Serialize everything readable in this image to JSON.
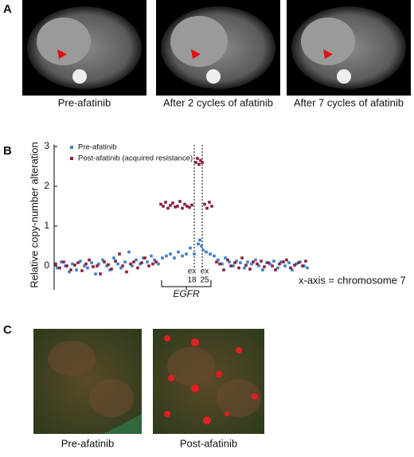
{
  "panels": {
    "a": "A",
    "b": "B",
    "c": "C"
  },
  "panel_a_captions": [
    "Pre-afatinib",
    "After 2 cycles of afatinib",
    "After 7 cycles of afatinib"
  ],
  "panel_c_captions": [
    "Pre-afatinib",
    "Post-afatinib"
  ],
  "chart_data": {
    "type": "scatter",
    "y_label": "Relative copy-number alteration",
    "x_note": "x-axis = chromosome 7",
    "gene_label": "EGFR",
    "exon_labels": [
      {
        "top": "ex",
        "bottom": "18"
      },
      {
        "top": "ex",
        "bottom": "25"
      }
    ],
    "ylim": [
      -0.6,
      3.05
    ],
    "yticks": [
      0,
      1,
      2,
      3
    ],
    "xlim": [
      0,
      320
    ],
    "series": [
      {
        "name": "Pre-afatinib",
        "color": "#3f7fc8",
        "x": [
          2,
          7,
          12,
          17,
          21,
          26,
          31,
          36,
          40,
          45,
          50,
          54,
          59,
          64,
          68,
          73,
          78,
          82,
          87,
          92,
          96,
          101,
          106,
          110,
          115,
          120,
          124,
          129,
          134,
          139,
          144,
          149,
          154,
          159,
          164,
          169,
          174,
          179,
          181,
          183,
          185,
          189,
          194,
          199,
          204,
          209,
          213,
          218,
          223,
          227,
          232,
          237,
          241,
          246,
          251,
          255,
          260,
          265,
          269,
          274,
          279,
          283,
          288,
          293,
          297,
          302,
          307,
          312,
          316
        ],
        "values": [
          -0.05,
          0.1,
          0,
          -0.15,
          0.05,
          -0.1,
          0.12,
          0,
          -0.05,
          0.08,
          -0.2,
          0.05,
          0.15,
          0,
          -0.1,
          0.2,
          0.05,
          -0.05,
          0.1,
          0.35,
          0,
          0.15,
          0.05,
          0.2,
          0.1,
          0.25,
          0.15,
          0.05,
          0.2,
          0.25,
          0.3,
          0.2,
          0.35,
          0.25,
          0.3,
          0.45,
          0.3,
          0.55,
          0.65,
          0.5,
          0.4,
          0.35,
          0.3,
          0.25,
          0.15,
          0.05,
          0.2,
          0.1,
          0,
          0.12,
          0.08,
          -0.05,
          0.1,
          0.05,
          0.15,
          0,
          -0.1,
          0.08,
          0.05,
          0.12,
          -0.05,
          0.1,
          0,
          0.08,
          -0.1,
          0.05,
          0.1,
          0,
          -0.05
        ]
      },
      {
        "name": "Post-afatinib (acquired resistance)",
        "color": "#8a1f3c",
        "x": [
          0,
          5,
          10,
          14,
          19,
          24,
          28,
          33,
          38,
          42,
          47,
          52,
          56,
          61,
          66,
          70,
          75,
          80,
          84,
          89,
          94,
          98,
          103,
          108,
          112,
          117,
          122,
          126,
          132,
          135,
          138,
          141,
          144,
          147,
          150,
          153,
          156,
          159,
          162,
          165,
          168,
          171,
          176,
          178,
          180,
          182,
          184,
          187,
          190,
          193,
          196,
          202,
          206,
          211,
          216,
          220,
          225,
          230,
          234,
          239,
          244,
          248,
          253,
          258,
          262,
          267,
          272,
          276,
          281,
          286,
          290,
          295,
          300,
          305,
          310,
          314
        ],
        "values": [
          0.05,
          -0.05,
          0.1,
          0,
          -0.1,
          0.02,
          0.08,
          -0.12,
          0.05,
          0.15,
          -0.02,
          0,
          -0.2,
          0.1,
          0.03,
          -0.08,
          0.12,
          0.3,
          0,
          -0.15,
          0.05,
          0.1,
          -0.05,
          0.08,
          0.2,
          0,
          0.05,
          0.1,
          1.55,
          1.5,
          1.6,
          1.45,
          1.52,
          1.58,
          1.48,
          1.5,
          1.62,
          1.45,
          1.55,
          1.5,
          1.47,
          1.53,
          2.6,
          2.7,
          2.55,
          2.65,
          2.6,
          1.55,
          1.45,
          1.6,
          1.5,
          0.1,
          0.05,
          -0.1,
          0.15,
          0,
          0.08,
          -0.05,
          0.2,
          0.02,
          -0.08,
          0.1,
          0.05,
          0.12,
          -0.02,
          0.08,
          0,
          -0.1,
          0.05,
          0.1,
          0.15,
          -0.05,
          0.02,
          0.08,
          0,
          0.12
        ]
      }
    ]
  }
}
